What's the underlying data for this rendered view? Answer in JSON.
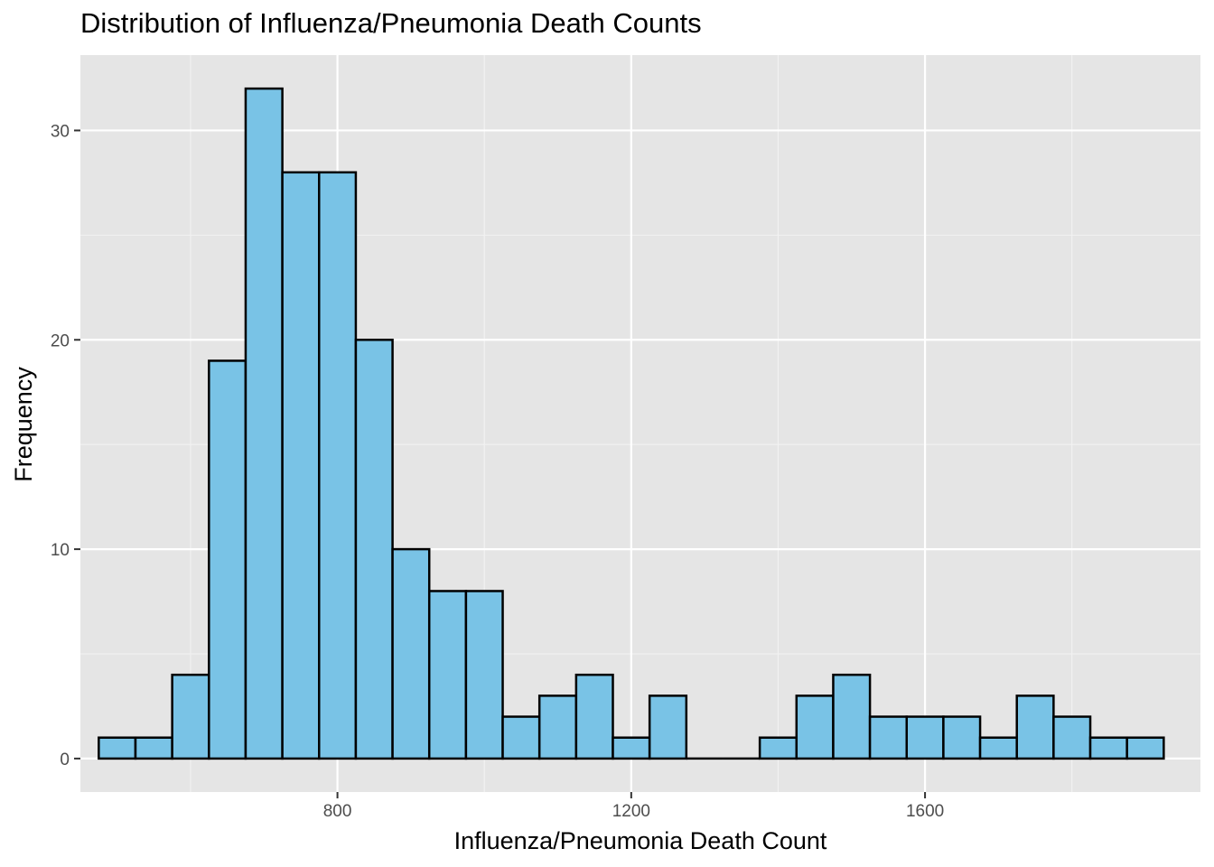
{
  "chart_data": {
    "type": "bar",
    "title": "Distribution of Influenza/Pneumonia Death Counts",
    "xlabel": "Influenza/Pneumonia Death Count",
    "ylabel": "Frequency",
    "xlim": [
      450,
      1975
    ],
    "ylim": [
      -1.6,
      33.6
    ],
    "x_ticks": [
      800,
      1200,
      1600
    ],
    "y_ticks": [
      0,
      10,
      20,
      30
    ],
    "bin_width": 50,
    "bins": [
      {
        "x0": 475,
        "x1": 525,
        "count": 1
      },
      {
        "x0": 525,
        "x1": 575,
        "count": 1
      },
      {
        "x0": 575,
        "x1": 625,
        "count": 4
      },
      {
        "x0": 625,
        "x1": 675,
        "count": 19
      },
      {
        "x0": 675,
        "x1": 725,
        "count": 32
      },
      {
        "x0": 725,
        "x1": 775,
        "count": 28
      },
      {
        "x0": 775,
        "x1": 825,
        "count": 28
      },
      {
        "x0": 825,
        "x1": 875,
        "count": 20
      },
      {
        "x0": 875,
        "x1": 925,
        "count": 10
      },
      {
        "x0": 925,
        "x1": 975,
        "count": 8
      },
      {
        "x0": 975,
        "x1": 1025,
        "count": 8
      },
      {
        "x0": 1025,
        "x1": 1075,
        "count": 2
      },
      {
        "x0": 1075,
        "x1": 1125,
        "count": 3
      },
      {
        "x0": 1125,
        "x1": 1175,
        "count": 4
      },
      {
        "x0": 1175,
        "x1": 1225,
        "count": 1
      },
      {
        "x0": 1225,
        "x1": 1275,
        "count": 3
      },
      {
        "x0": 1275,
        "x1": 1325,
        "count": 0
      },
      {
        "x0": 1325,
        "x1": 1375,
        "count": 0
      },
      {
        "x0": 1375,
        "x1": 1425,
        "count": 1
      },
      {
        "x0": 1425,
        "x1": 1475,
        "count": 3
      },
      {
        "x0": 1475,
        "x1": 1525,
        "count": 4
      },
      {
        "x0": 1525,
        "x1": 1575,
        "count": 2
      },
      {
        "x0": 1575,
        "x1": 1625,
        "count": 2
      },
      {
        "x0": 1625,
        "x1": 1675,
        "count": 2
      },
      {
        "x0": 1675,
        "x1": 1725,
        "count": 1
      },
      {
        "x0": 1725,
        "x1": 1775,
        "count": 3
      },
      {
        "x0": 1775,
        "x1": 1825,
        "count": 2
      },
      {
        "x0": 1825,
        "x1": 1875,
        "count": 1
      },
      {
        "x0": 1875,
        "x1": 1925,
        "count": 1
      }
    ],
    "grid": true,
    "colors": {
      "panel_background": "#e5e5e5",
      "grid_major": "#ffffff",
      "grid_minor": "#f2f2f2",
      "bar_fill": "#79c3e6",
      "bar_outline": "#000000",
      "tick_text": "#4d4d4d",
      "tick_mark": "#333333"
    }
  }
}
